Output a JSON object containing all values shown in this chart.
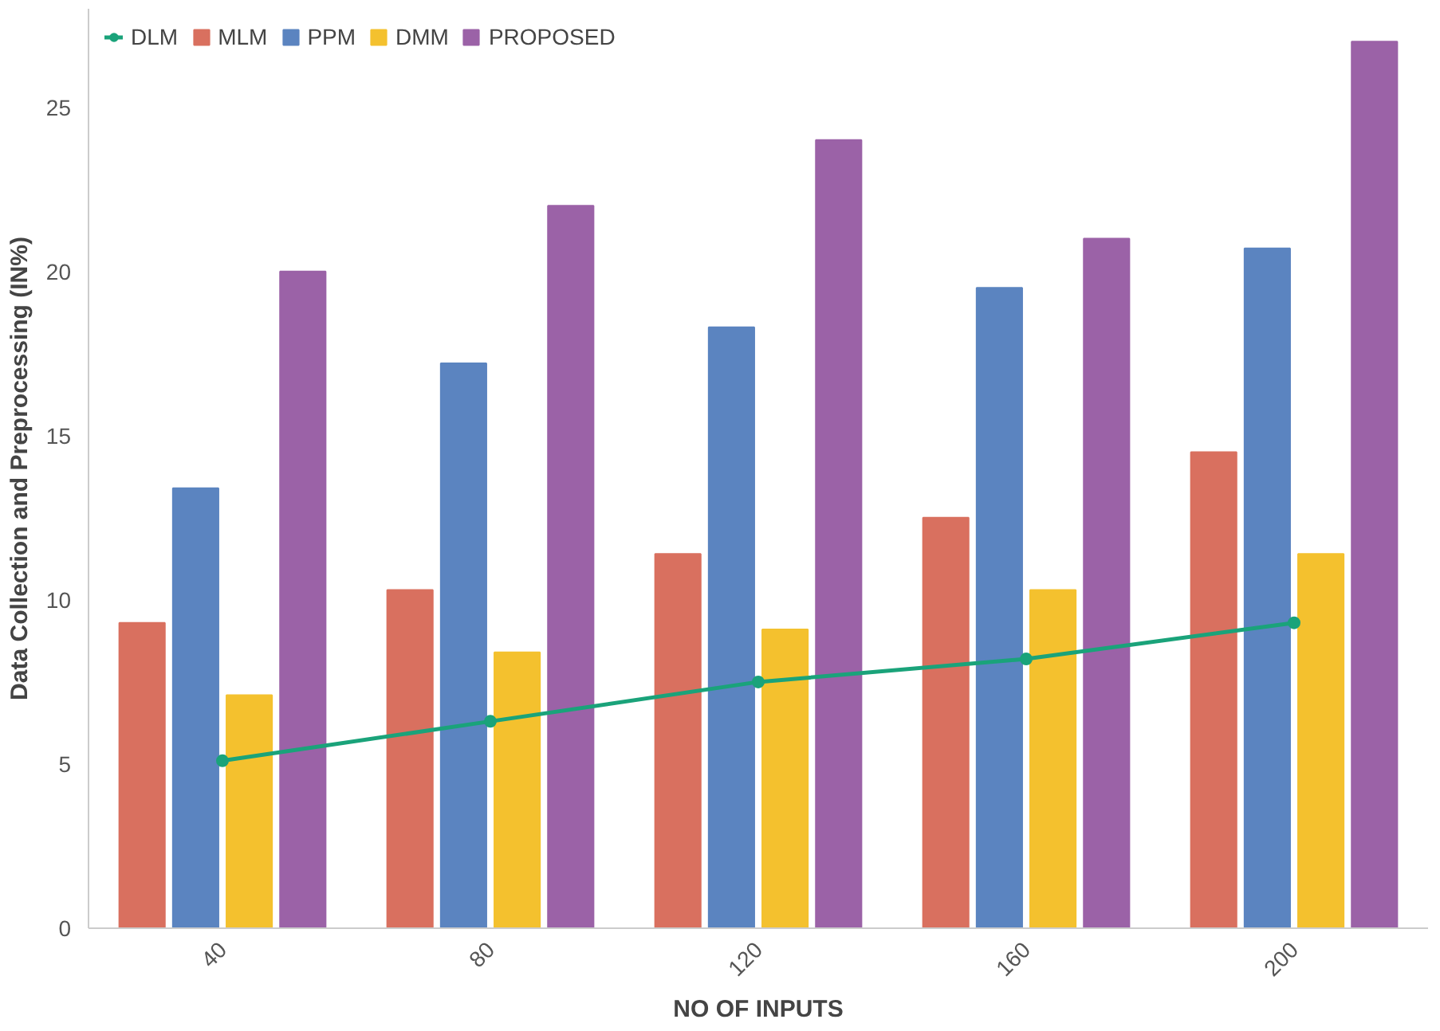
{
  "chart_data": {
    "type": "bar",
    "xlabel": "NO OF INPUTS",
    "ylabel": "Data Collection and Preprocessing (IN%)",
    "categories": [
      "40",
      "80",
      "120",
      "160",
      "200"
    ],
    "series": [
      {
        "name": "DLM",
        "type": "line",
        "color": "#1aa37a",
        "values": [
          5.1,
          6.3,
          7.5,
          8.2,
          9.3
        ]
      },
      {
        "name": "MLM",
        "color": "#d9705f",
        "values": [
          9.3,
          10.3,
          11.4,
          12.5,
          14.5
        ]
      },
      {
        "name": "PPM",
        "color": "#5b84c0",
        "values": [
          13.4,
          17.2,
          18.3,
          19.5,
          20.7
        ]
      },
      {
        "name": "DMM",
        "color": "#f4c12e",
        "values": [
          7.1,
          8.4,
          9.1,
          10.3,
          11.4
        ]
      },
      {
        "name": "PROPOSED",
        "color": "#9b62a7",
        "values": [
          20,
          22,
          24,
          21,
          27
        ]
      }
    ],
    "ylim": [
      0,
      28
    ],
    "yticks": [
      0,
      5,
      10,
      15,
      20,
      25
    ],
    "legend": "top left",
    "marker": "circle",
    "grid": false
  }
}
